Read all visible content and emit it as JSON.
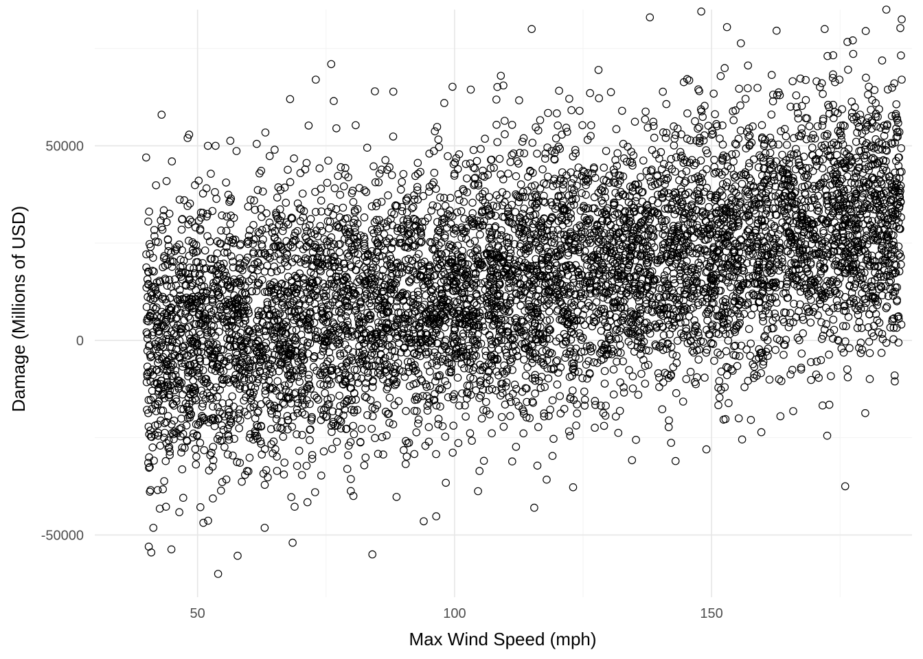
{
  "chart_data": {
    "type": "scatter",
    "title": "",
    "xlabel": "Max Wind Speed (mph)",
    "ylabel": "Damage (Millions of USD)",
    "xlim": [
      30,
      189
    ],
    "ylim": [
      -66000,
      85000
    ],
    "x_ticks": [
      50,
      100,
      150
    ],
    "x_tick_labels": [
      "50",
      "100",
      "150"
    ],
    "y_ticks": [
      -50000,
      0,
      50000
    ],
    "y_tick_labels": [
      "-50000",
      "0",
      "50000"
    ],
    "grid": true,
    "legend": "none",
    "marker": "open-circle",
    "marker_color": "#000000",
    "point_count": 7000,
    "x_range_observed": [
      40,
      187
    ],
    "trend": {
      "intercept": -11000,
      "slope_per_mph": 230,
      "residual_sd": 17000
    },
    "points": [
      [
        40,
        47000
      ],
      [
        40.5,
        -53000
      ],
      [
        41,
        -54500
      ],
      [
        43,
        58000
      ],
      [
        45,
        46000
      ],
      [
        52,
        50000
      ],
      [
        53.5,
        50000
      ],
      [
        54,
        -60000
      ],
      [
        61.5,
        50500
      ],
      [
        65,
        49000
      ],
      [
        68,
        62000
      ],
      [
        68.5,
        -52000
      ],
      [
        73,
        67000
      ],
      [
        76,
        71000
      ],
      [
        76.5,
        61500
      ],
      [
        77,
        54500
      ],
      [
        83,
        49500
      ],
      [
        84,
        -55000
      ],
      [
        84.5,
        64000
      ],
      [
        98,
        61000
      ],
      [
        109,
        68000
      ],
      [
        109.5,
        65500
      ],
      [
        115,
        80000
      ],
      [
        115.5,
        -43000
      ],
      [
        128,
        69500
      ],
      [
        138,
        83000
      ],
      [
        143,
        -31000
      ],
      [
        148,
        84500
      ],
      [
        149,
        -28000
      ],
      [
        153,
        80500
      ],
      [
        158,
        55000
      ],
      [
        159,
        30000
      ],
      [
        172,
        80000
      ],
      [
        172.5,
        -24500
      ],
      [
        176,
        -37500
      ],
      [
        180,
        79500
      ],
      [
        184,
        85000
      ],
      [
        187,
        82500
      ],
      [
        187,
        67000
      ],
      [
        120,
        15000
      ],
      [
        95,
        5000
      ],
      [
        60,
        -10000
      ],
      [
        135,
        22000
      ],
      [
        165,
        28000
      ],
      [
        100,
        10000
      ]
    ]
  }
}
